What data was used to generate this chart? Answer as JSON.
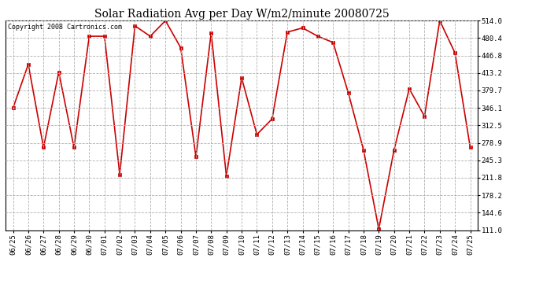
{
  "title": "Solar Radiation Avg per Day W/m2/minute 20080725",
  "copyright_text": "Copyright 2008 Cartronics.com",
  "dates": [
    "06/25",
    "06/26",
    "06/27",
    "06/28",
    "06/29",
    "06/30",
    "07/01",
    "07/02",
    "07/03",
    "07/04",
    "07/05",
    "07/06",
    "07/07",
    "07/08",
    "07/09",
    "07/10",
    "07/11",
    "07/12",
    "07/13",
    "07/14",
    "07/15",
    "07/16",
    "07/17",
    "07/18",
    "07/19",
    "07/20",
    "07/21",
    "07/22",
    "07/23",
    "07/24",
    "07/25"
  ],
  "values": [
    346.1,
    430.0,
    270.0,
    415.0,
    270.0,
    484.0,
    484.0,
    218.0,
    504.0,
    484.0,
    514.0,
    462.0,
    252.0,
    490.0,
    215.0,
    404.0,
    295.0,
    325.0,
    492.0,
    500.0,
    484.0,
    472.0,
    375.0,
    265.0,
    113.0,
    265.0,
    383.0,
    330.0,
    514.0,
    452.0,
    270.0
  ],
  "line_color": "#CC0000",
  "marker_color": "#CC0000",
  "bg_color": "#FFFFFF",
  "grid_color": "#B0B0B0",
  "ymin": 111.0,
  "ymax": 514.0,
  "yticks": [
    111.0,
    144.6,
    178.2,
    211.8,
    245.3,
    278.9,
    312.5,
    346.1,
    379.7,
    413.2,
    446.8,
    480.4,
    514.0
  ],
  "title_fontsize": 10,
  "tick_fontsize": 6.5,
  "copyright_fontsize": 6
}
